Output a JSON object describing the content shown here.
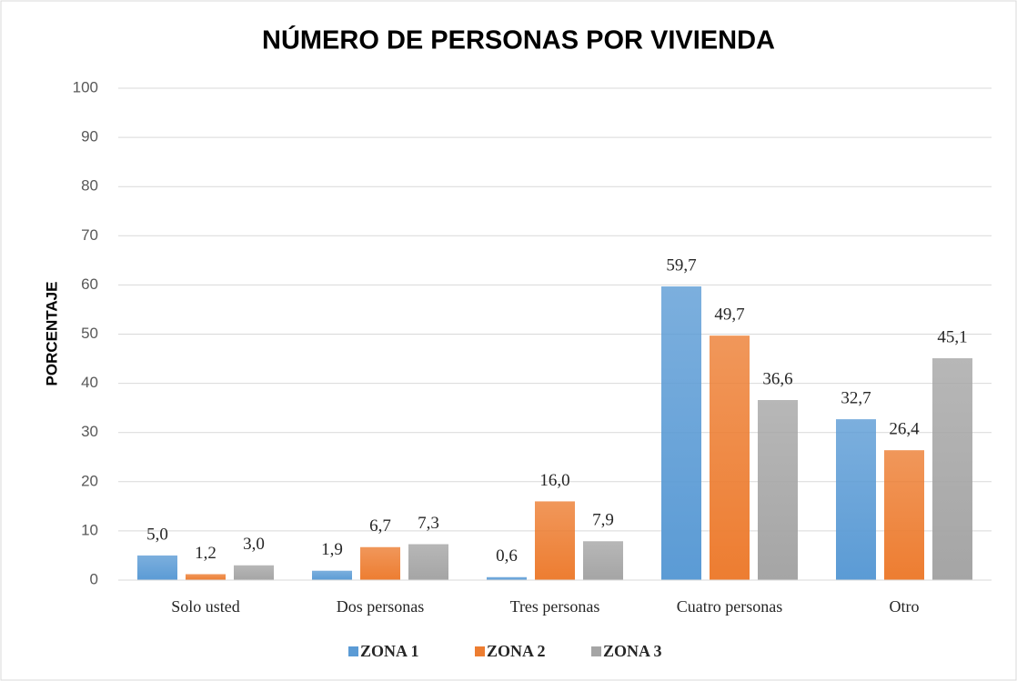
{
  "chart_data": {
    "type": "bar",
    "title": "NÚMERO DE PERSONAS POR VIVIENDA",
    "y_label": "PORCENTAJE",
    "categories": [
      "Solo usted",
      "Dos personas",
      "Tres personas",
      "Cuatro personas",
      "Otro"
    ],
    "series": [
      {
        "name": "ZONA 1",
        "color": "#5b9bd5",
        "values": [
          5.0,
          1.9,
          0.6,
          59.7,
          32.7
        ],
        "value_labels": [
          "5,0",
          "1,9",
          "0,6",
          "59,7",
          "32,7"
        ]
      },
      {
        "name": "ZONA 2",
        "color": "#ed7d31",
        "values": [
          1.2,
          6.7,
          16.0,
          49.7,
          26.4
        ],
        "value_labels": [
          "1,2",
          "6,7",
          "16,0",
          "49,7",
          "26,4"
        ]
      },
      {
        "name": "ZONA 3",
        "color": "#a5a5a5",
        "values": [
          3.0,
          7.3,
          7.9,
          36.6,
          45.1
        ],
        "value_labels": [
          "3,0",
          "7,3",
          "7,9",
          "36,6",
          "45,1"
        ]
      }
    ],
    "ylim": [
      0,
      100
    ],
    "yticks": [
      0,
      10,
      20,
      30,
      40,
      50,
      60,
      70,
      80,
      90,
      100
    ],
    "grid": true,
    "legend": "bottom"
  }
}
